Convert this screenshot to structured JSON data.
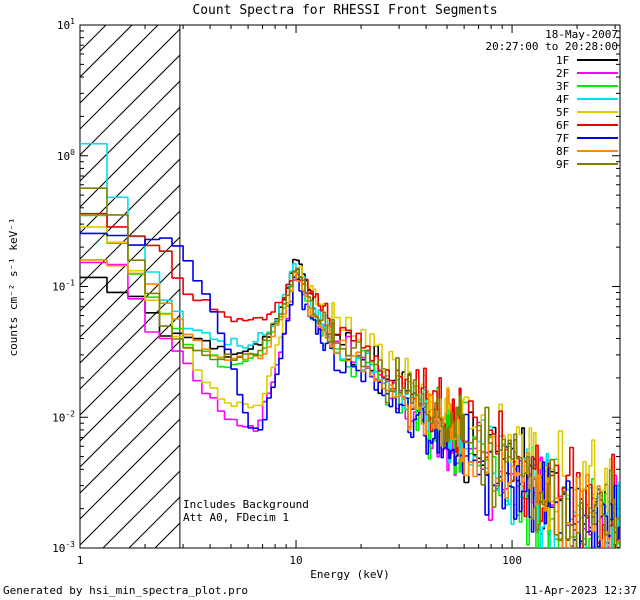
{
  "title": "Count Spectra for RHESSI Front Segments",
  "header": {
    "date": "18-May-2007",
    "time_range": "20:27:00 to 20:28:00"
  },
  "plot_annotations": {
    "line1": "Includes Background",
    "line2": "Att A0, FDecim 1"
  },
  "footer": {
    "generated_by": "Generated by hsi_min_spectra_plot.pro",
    "timestamp": "11-Apr-2023 12:37"
  },
  "chart_data": {
    "type": "line",
    "title": "Count Spectra for RHESSI Front Segments",
    "xlabel": "Energy (keV)",
    "ylabel": "counts cm⁻² s⁻¹ keV⁻¹",
    "x_scale": "log",
    "y_scale": "log",
    "xlim": [
      1,
      316
    ],
    "ylim": [
      0.001,
      10
    ],
    "x_major_ticks": [
      1,
      10,
      100
    ],
    "y_major_ticks": [
      0.001,
      0.01,
      0.1,
      1,
      10
    ],
    "hatch_region": {
      "x_min": 1,
      "x_max": 2.9,
      "style": "diagonal-hatch"
    },
    "legend_position": "top-right",
    "grid": false,
    "noise": {
      "sigma_low": 0.05,
      "sigma_high": 0.55
    },
    "series": [
      {
        "name": "1F",
        "color": "#000000",
        "anchors": [
          [
            1,
            0.12
          ],
          [
            1.4,
            0.1
          ],
          [
            2,
            0.085
          ],
          [
            2.4,
            0.04
          ],
          [
            3,
            0.042
          ],
          [
            4,
            0.036
          ],
          [
            5,
            0.03
          ],
          [
            7,
            0.035
          ],
          [
            9,
            0.08
          ],
          [
            10,
            0.18
          ],
          [
            11,
            0.12
          ],
          [
            13,
            0.05
          ],
          [
            16,
            0.038
          ],
          [
            20,
            0.03
          ],
          [
            30,
            0.017
          ],
          [
            50,
            0.008
          ],
          [
            70,
            0.006
          ],
          [
            100,
            0.004
          ],
          [
            150,
            0.0028
          ],
          [
            200,
            0.002
          ],
          [
            316,
            0.0015
          ]
        ]
      },
      {
        "name": "2F",
        "color": "#ff00ff",
        "anchors": [
          [
            1,
            0.17
          ],
          [
            1.5,
            0.14
          ],
          [
            2,
            0.06
          ],
          [
            3,
            0.028
          ],
          [
            4,
            0.014
          ],
          [
            5,
            0.009
          ],
          [
            6.5,
            0.008
          ],
          [
            8,
            0.02
          ],
          [
            9,
            0.05
          ],
          [
            10,
            0.13
          ],
          [
            12,
            0.055
          ],
          [
            16,
            0.032
          ],
          [
            20,
            0.024
          ],
          [
            30,
            0.013
          ],
          [
            50,
            0.0065
          ],
          [
            100,
            0.0033
          ],
          [
            200,
            0.0017
          ],
          [
            316,
            0.0012
          ]
        ]
      },
      {
        "name": "3F",
        "color": "#00ee00",
        "anchors": [
          [
            1,
            0.45
          ],
          [
            1.3,
            0.28
          ],
          [
            2,
            0.09
          ],
          [
            3,
            0.04
          ],
          [
            4,
            0.028
          ],
          [
            5,
            0.024
          ],
          [
            7,
            0.03
          ],
          [
            9,
            0.07
          ],
          [
            10,
            0.14
          ],
          [
            12,
            0.055
          ],
          [
            16,
            0.033
          ],
          [
            20,
            0.026
          ],
          [
            30,
            0.014
          ],
          [
            50,
            0.007
          ],
          [
            100,
            0.0033
          ],
          [
            200,
            0.0015
          ],
          [
            316,
            0.0011
          ]
        ]
      },
      {
        "name": "4F",
        "color": "#00e0e8",
        "anchors": [
          [
            1,
            1.0
          ],
          [
            1.2,
            1.3
          ],
          [
            1.5,
            0.45
          ],
          [
            2,
            0.17
          ],
          [
            2.6,
            0.07
          ],
          [
            3,
            0.055
          ],
          [
            4,
            0.04
          ],
          [
            6,
            0.035
          ],
          [
            8,
            0.05
          ],
          [
            10,
            0.16
          ],
          [
            12,
            0.065
          ],
          [
            16,
            0.036
          ],
          [
            20,
            0.028
          ],
          [
            30,
            0.015
          ],
          [
            50,
            0.0075
          ],
          [
            100,
            0.0036
          ],
          [
            200,
            0.0017
          ],
          [
            316,
            0.0012
          ]
        ]
      },
      {
        "name": "5F",
        "color": "#ddcc00",
        "anchors": [
          [
            1,
            0.32
          ],
          [
            1.5,
            0.22
          ],
          [
            2,
            0.1
          ],
          [
            3,
            0.038
          ],
          [
            4,
            0.017
          ],
          [
            5,
            0.012
          ],
          [
            7,
            0.013
          ],
          [
            9,
            0.06
          ],
          [
            10,
            0.14
          ],
          [
            12,
            0.09
          ],
          [
            15,
            0.062
          ],
          [
            20,
            0.046
          ],
          [
            30,
            0.023
          ],
          [
            50,
            0.0115
          ],
          [
            100,
            0.0052
          ],
          [
            200,
            0.0026
          ],
          [
            316,
            0.0018
          ]
        ]
      },
      {
        "name": "6F",
        "color": "#ee0000",
        "anchors": [
          [
            1,
            0.4
          ],
          [
            1.5,
            0.3
          ],
          [
            2,
            0.23
          ],
          [
            2.5,
            0.18
          ],
          [
            3,
            0.095
          ],
          [
            4,
            0.072
          ],
          [
            5,
            0.06
          ],
          [
            7,
            0.055
          ],
          [
            9,
            0.085
          ],
          [
            10,
            0.15
          ],
          [
            12,
            0.08
          ],
          [
            15,
            0.052
          ],
          [
            20,
            0.036
          ],
          [
            30,
            0.02
          ],
          [
            50,
            0.01
          ],
          [
            100,
            0.0046
          ],
          [
            200,
            0.0021
          ],
          [
            316,
            0.0015
          ]
        ]
      },
      {
        "name": "7F",
        "color": "#0000ee",
        "anchors": [
          [
            1,
            0.25
          ],
          [
            1.5,
            0.22
          ],
          [
            2,
            0.22
          ],
          [
            2.6,
            0.25
          ],
          [
            3,
            0.18
          ],
          [
            4,
            0.08
          ],
          [
            5,
            0.028
          ],
          [
            6,
            0.009
          ],
          [
            7,
            0.008
          ],
          [
            8.5,
            0.03
          ],
          [
            10,
            0.12
          ],
          [
            12,
            0.05
          ],
          [
            16,
            0.026
          ],
          [
            20,
            0.02
          ],
          [
            30,
            0.011
          ],
          [
            50,
            0.0058
          ],
          [
            100,
            0.0029
          ],
          [
            200,
            0.0014
          ],
          [
            316,
            0.0011
          ]
        ]
      },
      {
        "name": "8F",
        "color": "#ff8800",
        "anchors": [
          [
            1,
            0.16
          ],
          [
            1.5,
            0.15
          ],
          [
            2,
            0.12
          ],
          [
            3,
            0.05
          ],
          [
            4,
            0.03
          ],
          [
            5,
            0.026
          ],
          [
            7,
            0.03
          ],
          [
            9,
            0.065
          ],
          [
            10,
            0.13
          ],
          [
            12,
            0.06
          ],
          [
            16,
            0.034
          ],
          [
            20,
            0.027
          ],
          [
            30,
            0.0155
          ],
          [
            50,
            0.0078
          ],
          [
            100,
            0.0037
          ],
          [
            200,
            0.0018
          ],
          [
            316,
            0.0013
          ]
        ]
      },
      {
        "name": "9F",
        "color": "#7f7f00",
        "anchors": [
          [
            1,
            0.65
          ],
          [
            1.3,
            0.55
          ],
          [
            1.6,
            0.3
          ],
          [
            2,
            0.12
          ],
          [
            2.5,
            0.05
          ],
          [
            3,
            0.036
          ],
          [
            4,
            0.03
          ],
          [
            5,
            0.028
          ],
          [
            7,
            0.035
          ],
          [
            9,
            0.075
          ],
          [
            10,
            0.15
          ],
          [
            12,
            0.07
          ],
          [
            16,
            0.038
          ],
          [
            20,
            0.031
          ],
          [
            30,
            0.017
          ],
          [
            50,
            0.009
          ],
          [
            100,
            0.0042
          ],
          [
            200,
            0.002
          ],
          [
            316,
            0.0014
          ]
        ]
      }
    ]
  }
}
